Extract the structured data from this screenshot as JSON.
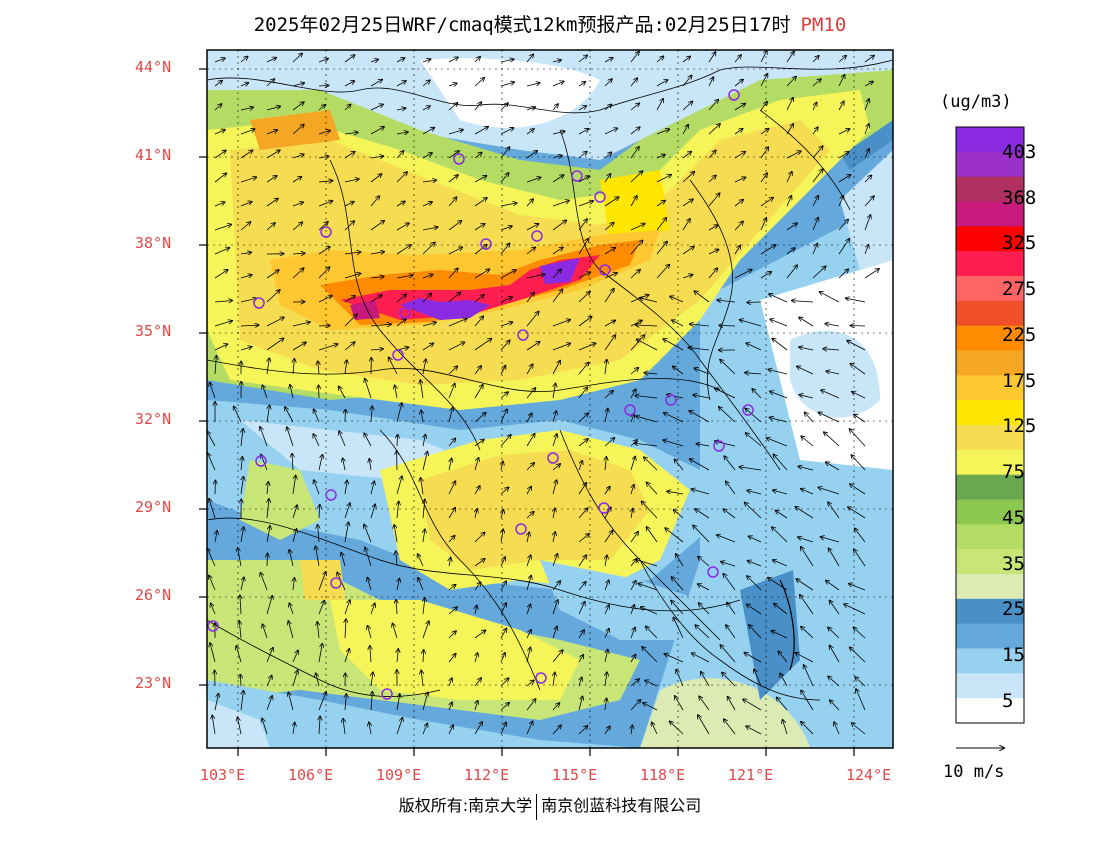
{
  "title": {
    "text": "2025年02月25日WRF/cmaq模式12km预报产品:02月25日17时",
    "variable": "PM10"
  },
  "axes": {
    "lat_labels": [
      "44°N",
      "41°N",
      "38°N",
      "35°N",
      "32°N",
      "29°N",
      "26°N",
      "23°N"
    ],
    "lon_labels": [
      "103°E",
      "106°E",
      "109°E",
      "112°E",
      "115°E",
      "118°E",
      "121°E",
      "124°E"
    ],
    "tick_color": "#e04848"
  },
  "colorbar": {
    "unit": "(ug/m3)",
    "labels": [
      "403",
      "368",
      "325",
      "275",
      "225",
      "175",
      "125",
      "75",
      "45",
      "35",
      "25",
      "15",
      "5"
    ],
    "colors": [
      "#8a2be2",
      "#9b30c8",
      "#b03060",
      "#c8197c",
      "#ff0000",
      "#ff1e50",
      "#ff6464",
      "#f05028",
      "#ff8c00",
      "#f5a623",
      "#ffc832",
      "#ffe600",
      "#f5dc50",
      "#f5f55a",
      "#6aa84f",
      "#8cc850",
      "#b4dc64",
      "#c8e678",
      "#dceab4",
      "#4a90c8",
      "#64a8dc",
      "#96d2f0",
      "#c8e6f8",
      "#ffffff"
    ]
  },
  "vector_legend": {
    "label": "10 m/s"
  },
  "copyright": {
    "left": "版权所有:南京大学",
    "right": "南京创蓝科技有限公司"
  }
}
